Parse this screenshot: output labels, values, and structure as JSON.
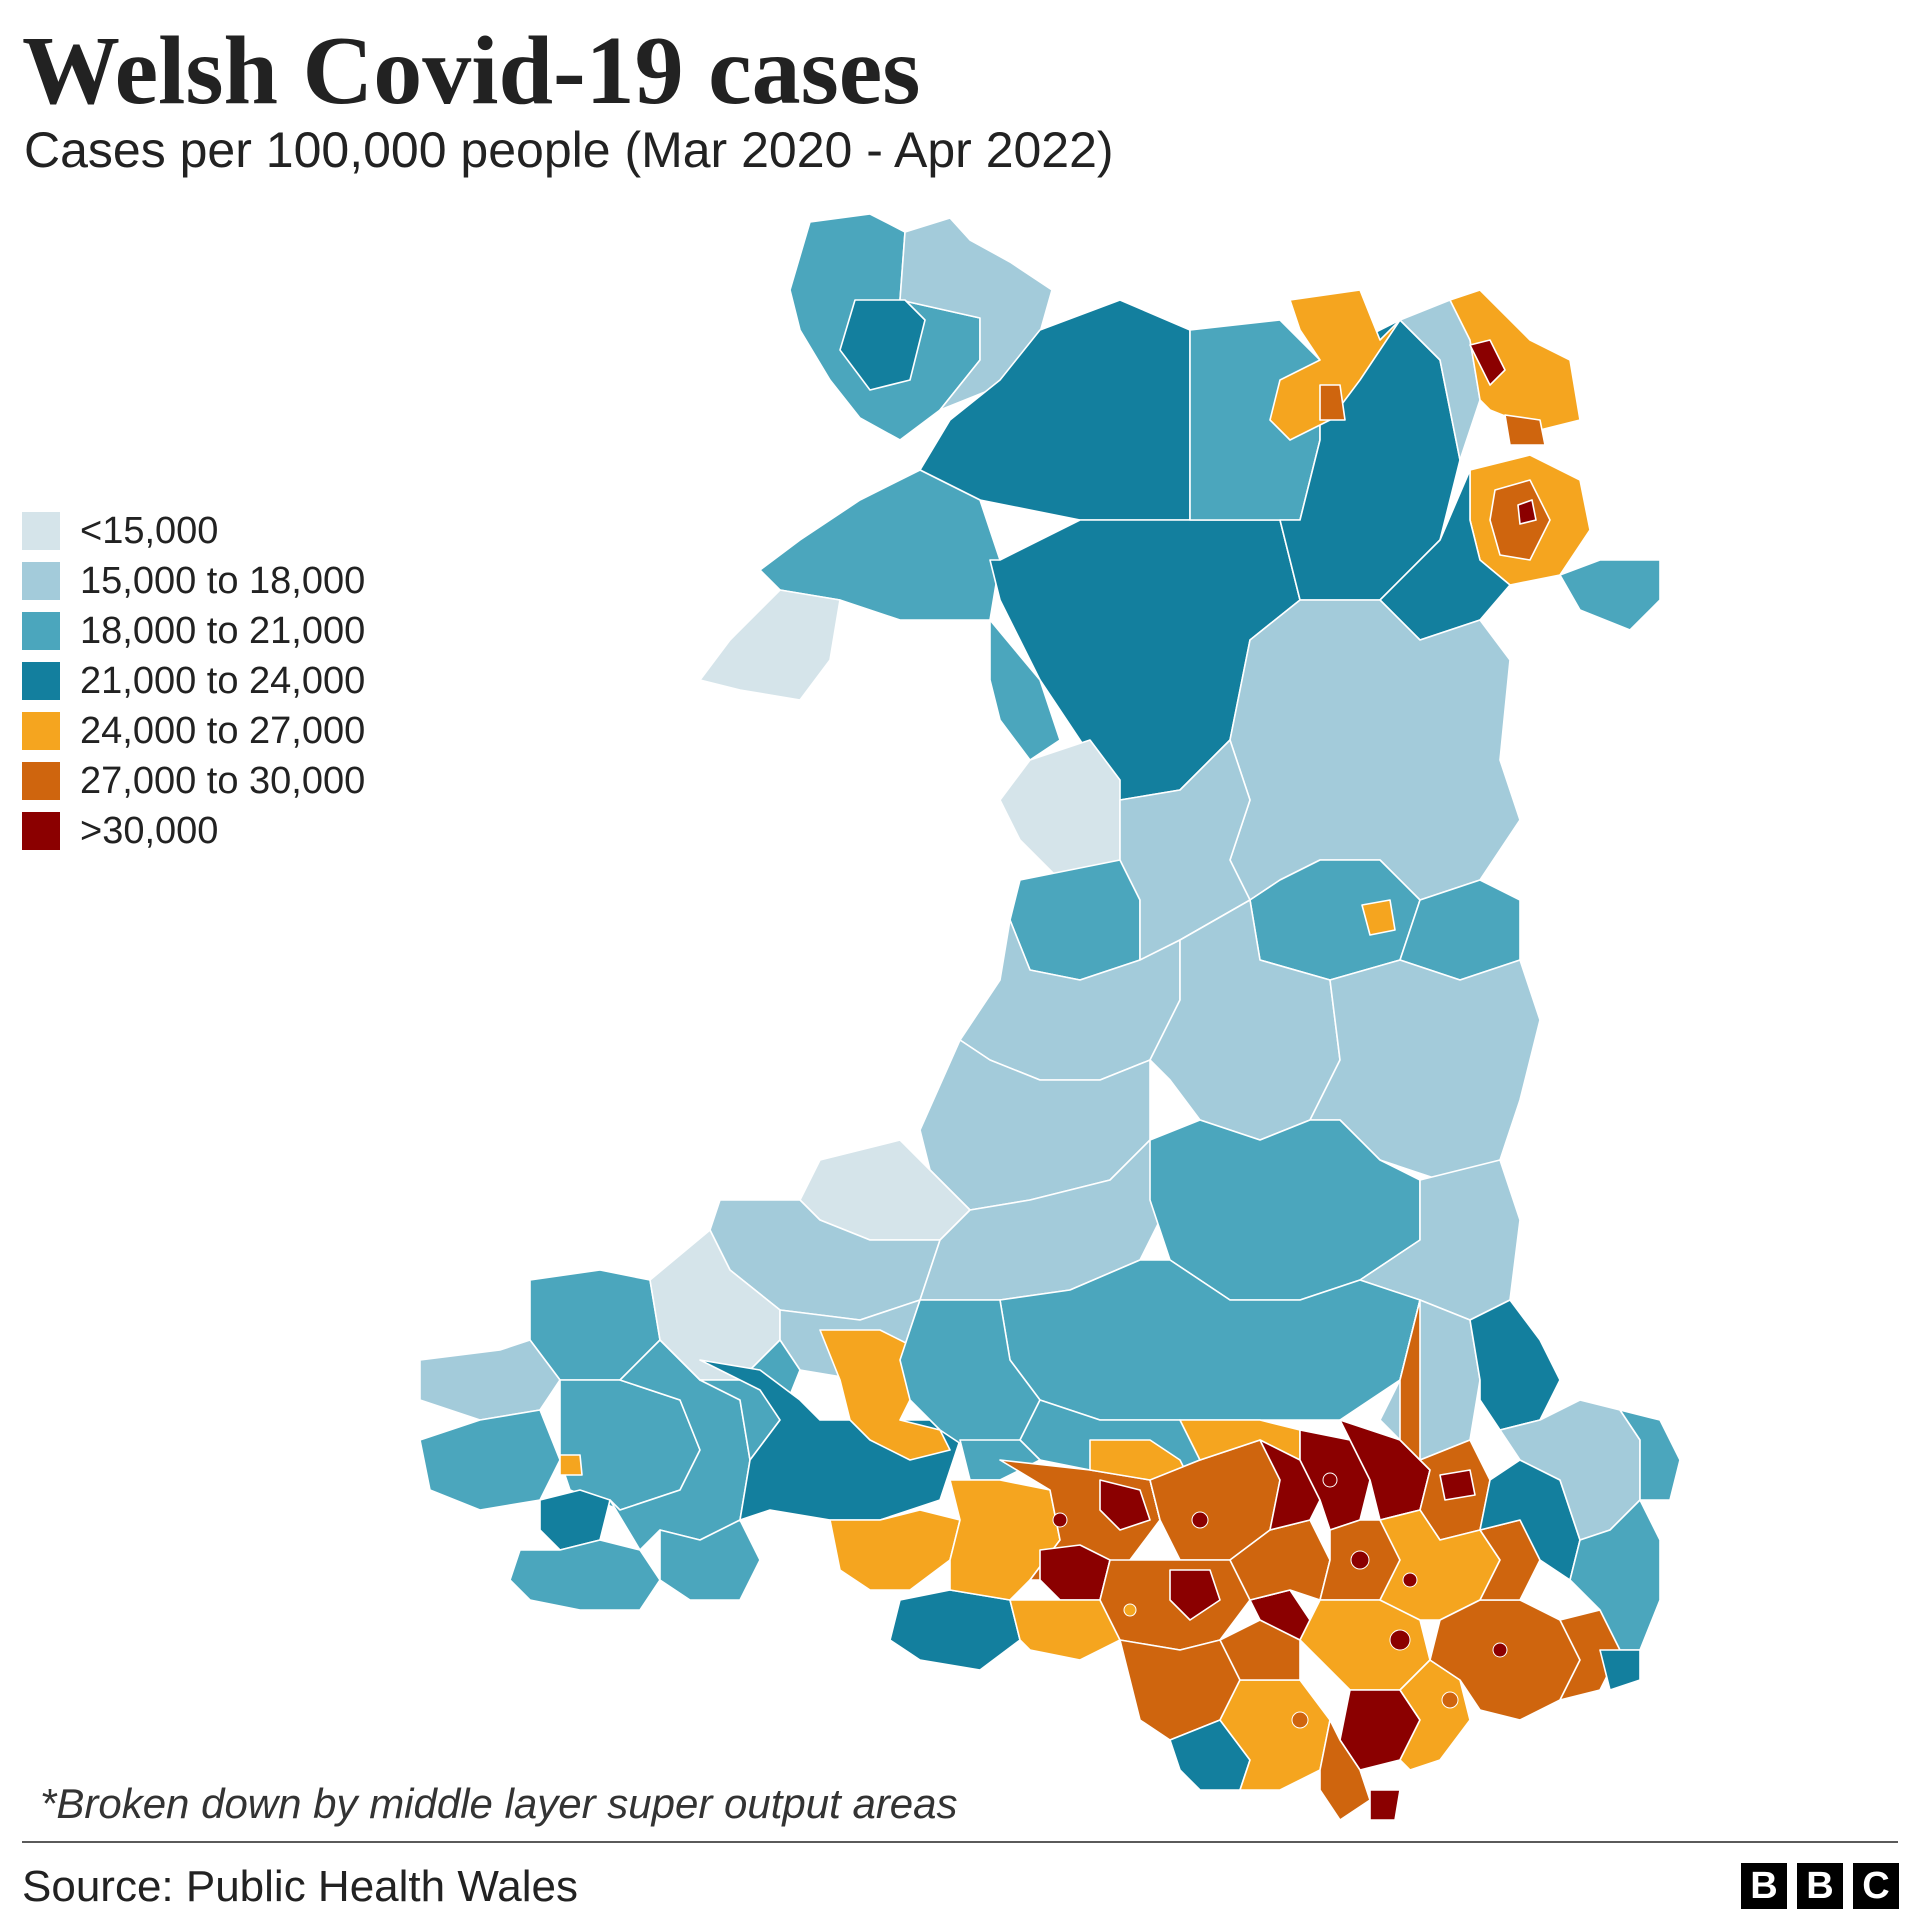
{
  "title": "Welsh Covid-19 cases",
  "subtitle": "Cases per 100,000 people (Mar 2020 - Apr 2022)",
  "legend": [
    {
      "label": "<15,000",
      "color": "#d5e4ea"
    },
    {
      "label": "15,000 to 18,000",
      "color": "#a3cbda"
    },
    {
      "label": "18,000 to 21,000",
      "color": "#4ba6bd"
    },
    {
      "label": "21,000 to 24,000",
      "color": "#137f9e"
    },
    {
      "label": "24,000 to 27,000",
      "color": "#f5a51f"
    },
    {
      "label": "27,000 to 30,000",
      "color": "#cf650e"
    },
    {
      "label": ">30,000",
      "color": "#8b0000"
    }
  ],
  "footnote": "*Broken down by middle layer super output areas",
  "source": "Source: Public Health Wales",
  "logo": [
    "B",
    "B",
    "C"
  ]
}
